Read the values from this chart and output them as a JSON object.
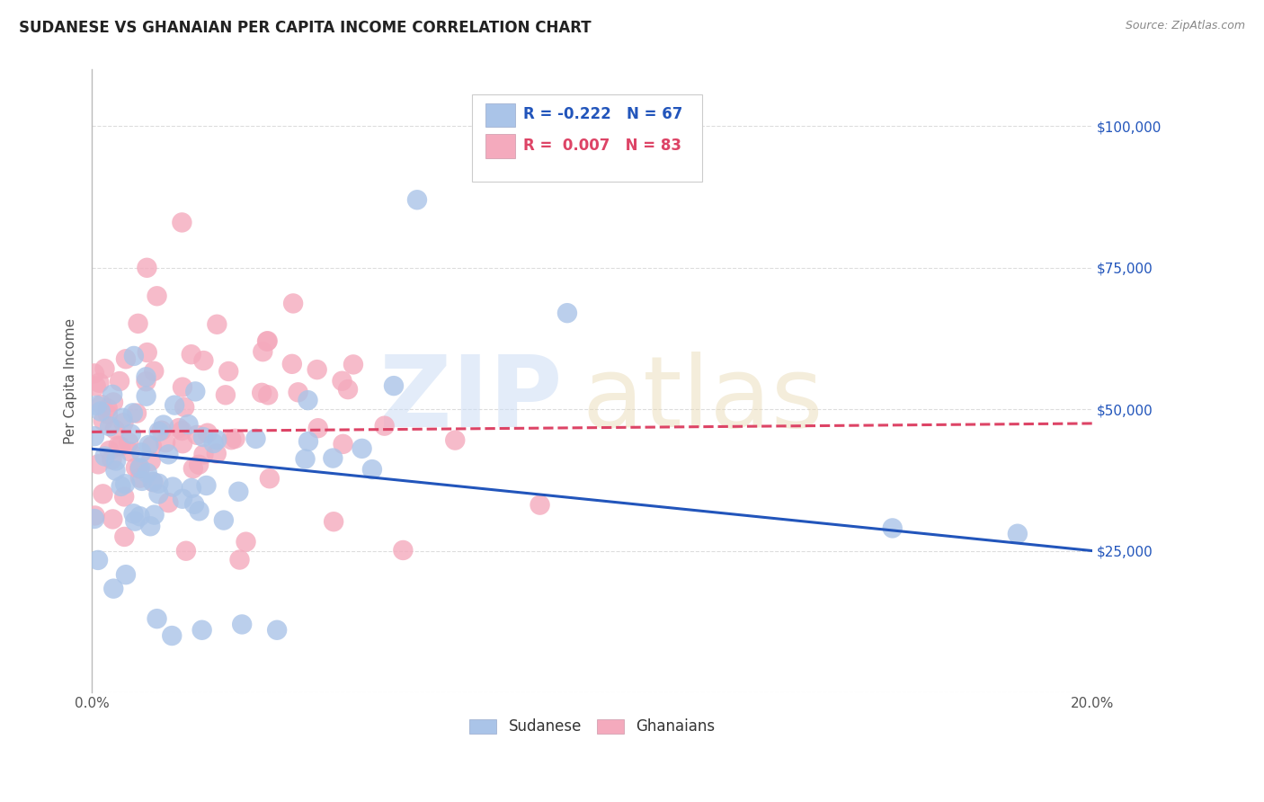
{
  "title": "SUDANESE VS GHANAIAN PER CAPITA INCOME CORRELATION CHART",
  "source": "Source: ZipAtlas.com",
  "ylabel": "Per Capita Income",
  "xlabel": "",
  "xlim": [
    0.0,
    0.2
  ],
  "ylim": [
    0,
    110000
  ],
  "yticks": [
    0,
    25000,
    50000,
    75000,
    100000
  ],
  "ytick_labels": [
    "",
    "$25,000",
    "$50,000",
    "$75,000",
    "$100,000"
  ],
  "xticks": [
    0.0,
    0.05,
    0.1,
    0.15,
    0.2
  ],
  "xtick_labels": [
    "0.0%",
    "",
    "",
    "",
    "20.0%"
  ],
  "bg_color": "#ffffff",
  "grid_color": "#dddddd",
  "sudanese_color": "#aac4e8",
  "ghanaian_color": "#f4aabd",
  "sudanese_line_color": "#2255bb",
  "ghanaian_line_color": "#dd4466",
  "legend_sudanese_R": "-0.222",
  "legend_sudanese_N": "67",
  "legend_ghanaian_R": "0.007",
  "legend_ghanaian_N": "83"
}
